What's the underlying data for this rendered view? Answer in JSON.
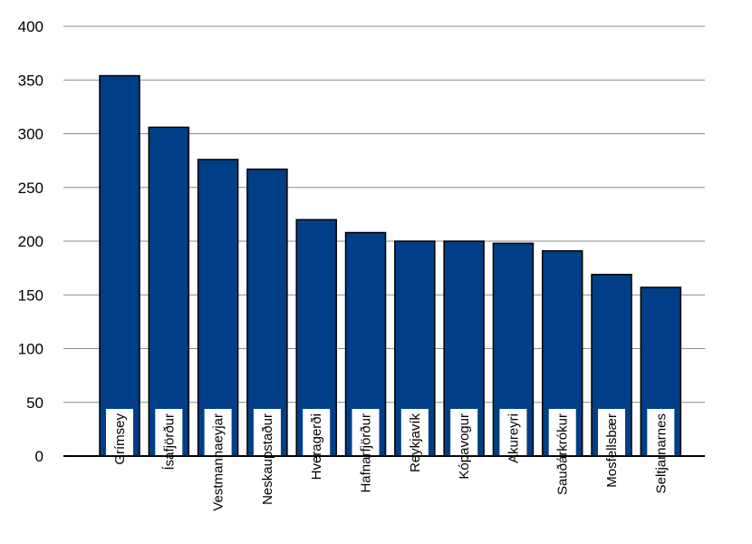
{
  "chart_data": {
    "type": "bar",
    "categories": [
      "Grímsey",
      "Ísafjörður",
      "Vestmannaeyjar",
      "Neskaupstaður",
      "Hveragerði",
      "Hafnarfjörður",
      "Reykjavík",
      "Kópavogur",
      "Akureyri",
      "Sauðárkrókur",
      "Mosfellsbær",
      "Seltjarnarnes"
    ],
    "values": [
      354,
      306,
      276,
      267,
      220,
      208,
      200,
      200,
      198,
      191,
      169,
      157
    ],
    "yticks": [
      "0",
      "50",
      "100",
      "150",
      "200",
      "250",
      "300",
      "350",
      "400"
    ],
    "ylim": [
      0,
      400
    ],
    "grid": true,
    "bar_color": "#003F87",
    "label_box_color": "#ffffff"
  }
}
